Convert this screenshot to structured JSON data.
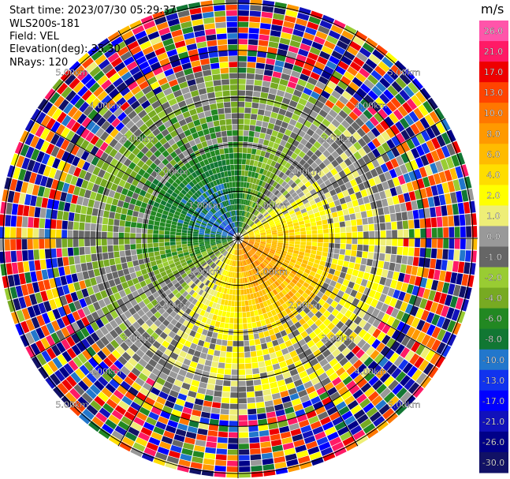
{
  "header": {
    "start_time": "Start time: 2023/07/30 05:29:37",
    "instrument": "WLS200s-181",
    "field": "Field: VEL",
    "elevation": "Elevation(deg): 35.30",
    "nrays": "NRays: 120"
  },
  "chart_data": {
    "type": "heatmap",
    "projection": "polar PPI scan",
    "field": "VEL",
    "units": "m/s",
    "n_rays": 120,
    "range_rings_km": [
      1.0,
      2.0,
      3.0,
      4.0,
      5.0
    ],
    "ring_label_texts": [
      "1.00km",
      "2.00km",
      "3.00km",
      "4.00km",
      "5.00km"
    ],
    "radial_lines_deg": [
      0,
      30,
      60,
      90,
      120,
      150,
      180,
      210,
      240,
      270,
      300,
      330
    ],
    "colorbar": {
      "title": "m/s",
      "tick_labels": [
        "26.0",
        "21.0",
        "17.0",
        "13.0",
        "10.0",
        "8.0",
        "6.0",
        "4.0",
        "2.0",
        "1.0",
        "0.0",
        "-1.0",
        "-2.0",
        "-4.0",
        "-6.0",
        "-8.0",
        "-10.0",
        "-13.0",
        "-17.0",
        "-21.0",
        "-26.0",
        "-30.0"
      ],
      "colors": [
        "#ff55aa",
        "#ff1a66",
        "#ee0000",
        "#ff4400",
        "#ff7700",
        "#ff9900",
        "#ffbb00",
        "#ffdd00",
        "#ffff00",
        "#eeee77",
        "#999999",
        "#666666",
        "#99cc33",
        "#77aa22",
        "#228822",
        "#117733",
        "#2277cc",
        "#1133ee",
        "#0000ff",
        "#1111bb",
        "#000088",
        "#111166"
      ]
    },
    "velocity_pattern": {
      "inner_positive_direction": "south-east",
      "inner_negative_direction": "north-west",
      "noise_beyond_km": 3.6
    }
  }
}
